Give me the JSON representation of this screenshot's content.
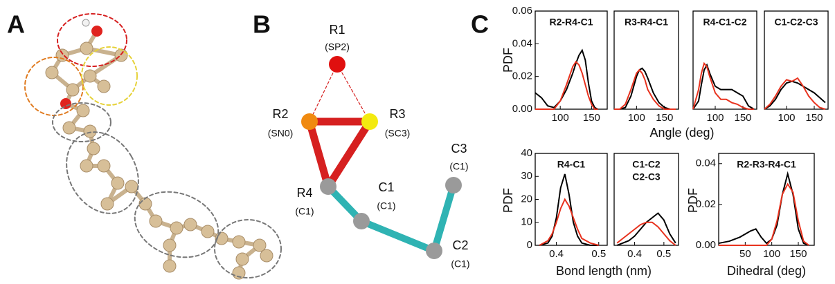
{
  "panels": {
    "a": {
      "label": "A"
    },
    "b": {
      "label": "B",
      "beads": [
        {
          "name": "R1",
          "type": "(SP2)"
        },
        {
          "name": "R2",
          "type": "(SN0)"
        },
        {
          "name": "R3",
          "type": "(SC3)"
        },
        {
          "name": "R4",
          "type": "(C1)"
        },
        {
          "name": "C1",
          "type": "(C1)"
        },
        {
          "name": "C2",
          "type": "(C1)"
        },
        {
          "name": "C3",
          "type": "(C1)"
        }
      ]
    },
    "c": {
      "label": "C"
    }
  },
  "chart_data": [
    {
      "type": "line",
      "title": "R2-R4-C1",
      "ylabel": "PDF",
      "xlabel": "Angle (deg)",
      "x": [
        60,
        70,
        80,
        90,
        100,
        110,
        120,
        125,
        130,
        135,
        140,
        145,
        150,
        155,
        160
      ],
      "series": [
        {
          "color": "#000000",
          "values": [
            0.01,
            0.007,
            0.002,
            0.001,
            0.005,
            0.012,
            0.022,
            0.028,
            0.033,
            0.036,
            0.03,
            0.016,
            0.005,
            0.001,
            0
          ]
        },
        {
          "color": "#e8321e",
          "values": [
            0,
            0,
            0,
            0,
            0.005,
            0.015,
            0.026,
            0.029,
            0.027,
            0.022,
            0.015,
            0.008,
            0.003,
            0,
            0
          ]
        }
      ],
      "xlim": [
        60,
        175
      ],
      "xticks": [
        100,
        150
      ],
      "ylim": [
        0,
        0.06
      ],
      "yticks": [
        {
          "value": 0,
          "label": "0.00"
        },
        {
          "value": 0.02,
          "label": "0.02"
        },
        {
          "value": 0.04,
          "label": "0.04"
        },
        {
          "value": 0.06,
          "label": "0.06"
        }
      ]
    },
    {
      "type": "line",
      "title": "R3-R4-C1",
      "x": [
        60,
        70,
        80,
        90,
        100,
        105,
        110,
        115,
        120,
        130,
        140,
        150,
        160,
        170
      ],
      "series": [
        {
          "color": "#000000",
          "values": [
            0,
            0,
            0.001,
            0.008,
            0.02,
            0.024,
            0.025,
            0.023,
            0.019,
            0.01,
            0.004,
            0.001,
            0,
            0
          ]
        },
        {
          "color": "#e8321e",
          "values": [
            0,
            0,
            0.003,
            0.012,
            0.022,
            0.024,
            0.022,
            0.018,
            0.012,
            0.006,
            0.002,
            0,
            0,
            0
          ]
        }
      ],
      "xlim": [
        60,
        175
      ],
      "xticks": [
        100,
        150
      ],
      "ylim": [
        0,
        0.06
      ]
    },
    {
      "type": "line",
      "title": "R4-C1-C2",
      "x": [
        60,
        70,
        75,
        80,
        85,
        90,
        100,
        110,
        120,
        130,
        140,
        150,
        160,
        170
      ],
      "series": [
        {
          "color": "#000000",
          "values": [
            0,
            0.005,
            0.015,
            0.024,
            0.027,
            0.022,
            0.014,
            0.012,
            0.012,
            0.012,
            0.01,
            0.008,
            0.002,
            0
          ]
        },
        {
          "color": "#e8321e",
          "values": [
            0,
            0.012,
            0.022,
            0.028,
            0.026,
            0.02,
            0.01,
            0.006,
            0.006,
            0.004,
            0.003,
            0.001,
            0,
            0
          ]
        }
      ],
      "xlim": [
        60,
        175
      ],
      "xticks": [
        100,
        150
      ],
      "ylim": [
        0,
        0.06
      ]
    },
    {
      "type": "line",
      "title": "C1-C2-C3",
      "x": [
        60,
        70,
        80,
        90,
        100,
        110,
        120,
        130,
        140,
        150,
        160,
        170
      ],
      "series": [
        {
          "color": "#000000",
          "values": [
            0,
            0.002,
            0.006,
            0.012,
            0.016,
            0.017,
            0.016,
            0.014,
            0.012,
            0.01,
            0.007,
            0.004
          ]
        },
        {
          "color": "#e8321e",
          "values": [
            0,
            0.003,
            0.008,
            0.014,
            0.018,
            0.017,
            0.019,
            0.014,
            0.008,
            0.004,
            0.001,
            0
          ]
        }
      ],
      "xlim": [
        60,
        175
      ],
      "xticks": [
        100,
        150
      ],
      "ylim": [
        0,
        0.06
      ]
    },
    {
      "type": "line",
      "title": "R4-C1",
      "ylabel": "PDF",
      "xlabel": "Bond length (nm)",
      "x": [
        0.36,
        0.38,
        0.39,
        0.4,
        0.41,
        0.42,
        0.43,
        0.44,
        0.45,
        0.46,
        0.48,
        0.5
      ],
      "series": [
        {
          "color": "#000000",
          "values": [
            0,
            1,
            4,
            12,
            25,
            31,
            22,
            10,
            4,
            1,
            0,
            0
          ]
        },
        {
          "color": "#e8321e",
          "values": [
            0,
            2,
            5,
            10,
            16,
            20,
            17,
            12,
            7,
            3,
            1,
            0
          ]
        }
      ],
      "xlim": [
        0.35,
        0.52
      ],
      "xticks": [
        0.4,
        0.5
      ],
      "ylim": [
        0,
        40
      ],
      "yticks": [
        0,
        10,
        20,
        30,
        40
      ]
    },
    {
      "type": "line",
      "title_lines": [
        "C1-C2",
        "C2-C3"
      ],
      "x": [
        0.34,
        0.36,
        0.38,
        0.4,
        0.42,
        0.44,
        0.46,
        0.48,
        0.5,
        0.52,
        0.54
      ],
      "series": [
        {
          "color": "#000000",
          "values": [
            0,
            1,
            2,
            4,
            7,
            10,
            12,
            14,
            11,
            5,
            1
          ]
        },
        {
          "color": "#e8321e",
          "values": [
            1,
            3,
            5,
            7,
            9,
            10,
            10,
            8,
            5,
            2,
            0
          ]
        }
      ],
      "xlim": [
        0.33,
        0.55
      ],
      "xticks": [
        0.4,
        0.5
      ],
      "ylim": [
        0,
        40
      ]
    },
    {
      "type": "line",
      "title": "R2-R3-R4-C1",
      "ylabel": "PDF",
      "xlabel": "Dihedral (deg)",
      "x": [
        0,
        20,
        40,
        60,
        70,
        80,
        90,
        100,
        110,
        120,
        130,
        140,
        150,
        160,
        170
      ],
      "series": [
        {
          "color": "#000000",
          "values": [
            0.001,
            0.002,
            0.004,
            0.007,
            0.008,
            0.004,
            0.001,
            0.003,
            0.01,
            0.025,
            0.035,
            0.025,
            0.008,
            0.001,
            0
          ]
        },
        {
          "color": "#e8321e",
          "values": [
            0,
            0,
            0,
            0,
            0,
            0,
            0,
            0.003,
            0.012,
            0.025,
            0.03,
            0.026,
            0.012,
            0.002,
            0
          ]
        }
      ],
      "xlim": [
        0,
        180
      ],
      "xticks": [
        50,
        100,
        150
      ],
      "ylim": [
        0,
        0.045
      ],
      "yticks": [
        {
          "value": 0,
          "label": "0.00"
        },
        {
          "value": 0.02,
          "label": "0.02"
        },
        {
          "value": 0.04,
          "label": "0.04"
        }
      ]
    }
  ]
}
